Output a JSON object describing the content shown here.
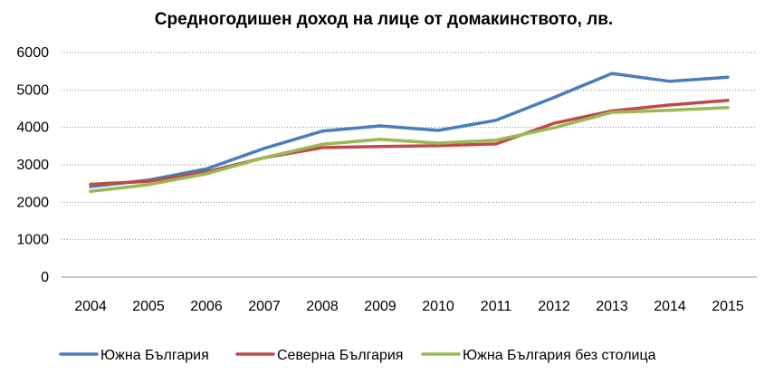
{
  "chart_data": {
    "type": "line",
    "title": "Средногодишен доход на лице от домакинството, лв.",
    "xlabel": "",
    "ylabel": "",
    "categories": [
      "2004",
      "2005",
      "2006",
      "2007",
      "2008",
      "2009",
      "2010",
      "2011",
      "2012",
      "2013",
      "2014",
      "2015"
    ],
    "yticks": [
      "0",
      "1000",
      "2000",
      "3000",
      "4000",
      "5000",
      "6000"
    ],
    "ylim": [
      0,
      6000
    ],
    "grid": true,
    "legend_position": "bottom",
    "series": [
      {
        "name": "Южна България",
        "color": "#4a7ebb",
        "values": [
          2420,
          2590,
          2890,
          3440,
          3900,
          4040,
          3920,
          4190,
          4800,
          5440,
          5230,
          5340
        ]
      },
      {
        "name": "Северна България",
        "color": "#be4b48",
        "values": [
          2480,
          2560,
          2810,
          3190,
          3460,
          3490,
          3510,
          3560,
          4110,
          4440,
          4600,
          4720
        ]
      },
      {
        "name": "Южна България без столица",
        "color": "#98b954",
        "values": [
          2290,
          2470,
          2760,
          3190,
          3550,
          3680,
          3580,
          3660,
          3990,
          4400,
          4460,
          4530
        ]
      }
    ]
  }
}
